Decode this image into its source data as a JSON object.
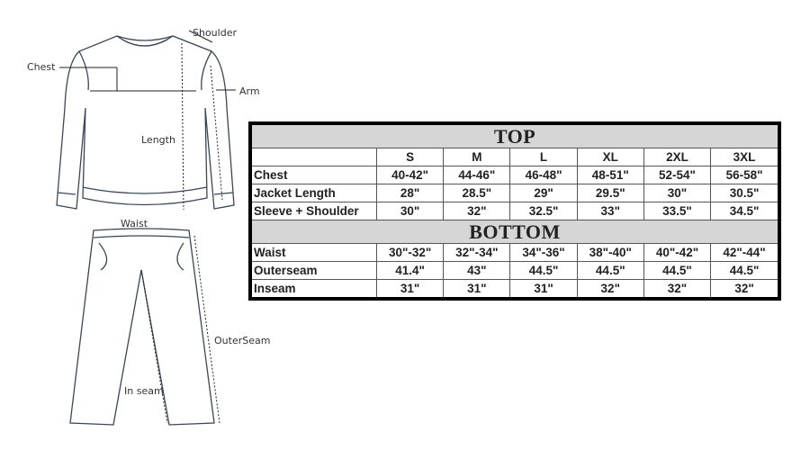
{
  "diagram": {
    "top_labels": {
      "shoulder": "Shoulder",
      "chest": "Chest",
      "arm": "Arm",
      "length": "Length"
    },
    "bottom_labels": {
      "waist": "Waist",
      "outerseam": "OuterSeam",
      "inseam": "In seam"
    }
  },
  "table": {
    "sizes": [
      "S",
      "M",
      "L",
      "XL",
      "2XL",
      "3XL"
    ],
    "top": {
      "title": "TOP",
      "rows": [
        {
          "label": "Chest",
          "values": [
            "40-42\"",
            "44-46\"",
            "46-48\"",
            "48-51\"",
            "52-54\"",
            "56-58\""
          ]
        },
        {
          "label": "Jacket Length",
          "values": [
            "28\"",
            "28.5\"",
            "29\"",
            "29.5\"",
            "30\"",
            "30.5\""
          ]
        },
        {
          "label": "Sleeve + Shoulder",
          "values": [
            "30\"",
            "32\"",
            "32.5\"",
            "33\"",
            "33.5\"",
            "34.5\""
          ]
        }
      ]
    },
    "bottom": {
      "title": "BOTTOM",
      "rows": [
        {
          "label": "Waist",
          "values": [
            "30\"-32\"",
            "32\"-34\"",
            "34\"-36\"",
            "38\"-40\"",
            "40\"-42\"",
            "42\"-44\""
          ]
        },
        {
          "label": "Outerseam",
          "values": [
            "41.4\"",
            "43\"",
            "44.5\"",
            "44.5\"",
            "44.5\"",
            "44.5\""
          ]
        },
        {
          "label": "Inseam",
          "values": [
            "31\"",
            "31\"",
            "31\"",
            "32\"",
            "32\"",
            "32\""
          ]
        }
      ]
    }
  }
}
